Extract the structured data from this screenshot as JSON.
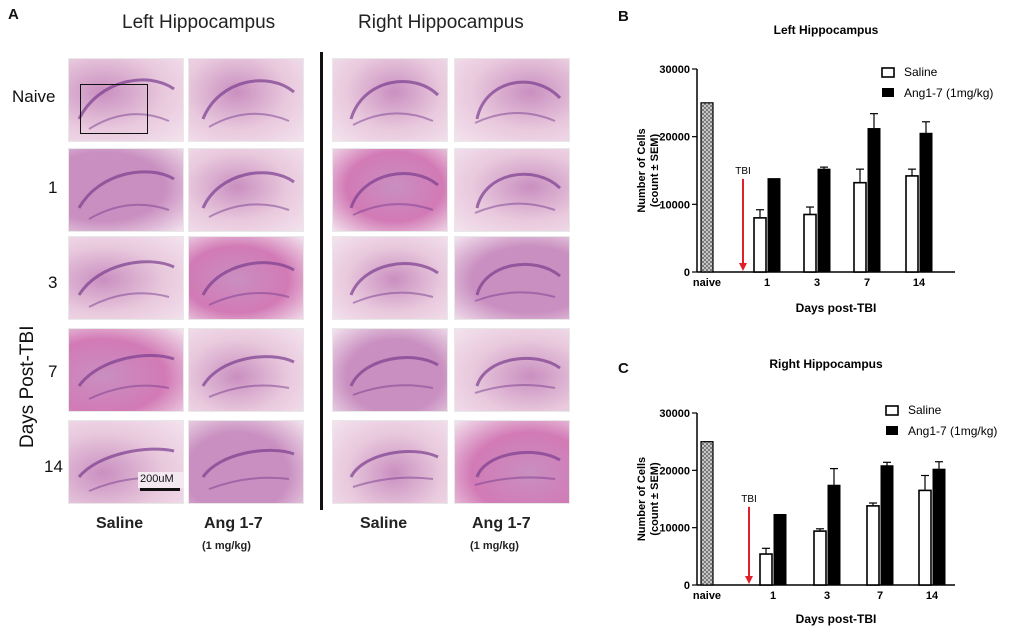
{
  "panels": {
    "A": "A",
    "B": "B",
    "C": "C"
  },
  "histology": {
    "left_title": "Left Hippocampus",
    "right_title": "Right Hippocampus",
    "rows": [
      "Naive",
      "1",
      "3",
      "7",
      "14"
    ],
    "vertical_label": "Days Post-TBI",
    "col_labels": [
      "Saline",
      "Ang 1-7",
      "Saline",
      "Ang 1-7"
    ],
    "dose_labels": [
      "(1 mg/kg)",
      "(1 mg/kg)"
    ],
    "scale_bar": "200uM",
    "colors": {
      "stain_light": "#e9c9dd",
      "stain_mid": "#c98fc0",
      "stain_dark": "#7a3d8f",
      "stain_pink": "#d27ab5"
    }
  },
  "chart_data": [
    {
      "type": "bar",
      "title": "Left Hippocampus",
      "xlabel": "Days post-TBI",
      "ylabel": "Number of Cells (count ± SEM)",
      "ylim": [
        0,
        30000
      ],
      "yticks": [
        0,
        10000,
        20000,
        30000
      ],
      "categories": [
        "naive",
        "1",
        "3",
        "7",
        "14"
      ],
      "series": [
        {
          "name": "Saline",
          "values": [
            25000,
            8000,
            8500,
            13200,
            14200
          ],
          "errors": [
            0,
            1200,
            1100,
            2000,
            1000
          ],
          "color": "#ffffff"
        },
        {
          "name": "Ang1-7 (1mg/kg)",
          "values": [
            null,
            13800,
            15200,
            21200,
            20500
          ],
          "errors": [
            0,
            0,
            300,
            2200,
            1700
          ],
          "color": "#000000"
        }
      ],
      "annotation": "TBI",
      "annotation_color": "#e0202a",
      "legend": "top-right"
    },
    {
      "type": "bar",
      "title": "Right Hippocampus",
      "xlabel": "Days post-TBI",
      "ylabel": "Number of Cells (count ± SEM)",
      "ylim": [
        0,
        30000
      ],
      "yticks": [
        0,
        10000,
        20000,
        30000
      ],
      "categories": [
        "naive",
        "1",
        "3",
        "7",
        "14"
      ],
      "series": [
        {
          "name": "Saline",
          "values": [
            25000,
            5400,
            9400,
            13800,
            16500
          ],
          "errors": [
            0,
            1000,
            400,
            500,
            2600
          ],
          "color": "#ffffff"
        },
        {
          "name": "Ang1-7 (1mg/kg)",
          "values": [
            null,
            12300,
            17400,
            20800,
            20200
          ],
          "errors": [
            0,
            0,
            2900,
            600,
            1300
          ],
          "color": "#000000"
        }
      ],
      "annotation": "TBI",
      "annotation_color": "#e0202a",
      "legend": "top-right"
    }
  ]
}
